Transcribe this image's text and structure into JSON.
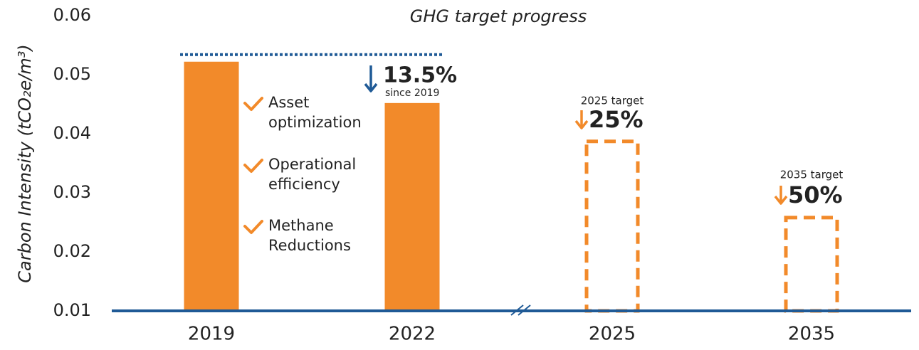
{
  "chart_data": {
    "type": "bar",
    "title": "GHG target progress",
    "y_label": "Carbon Intensity (tCO₂e/m³)",
    "categories": [
      "2019",
      "2022",
      "2025",
      "2035"
    ],
    "values": [
      0.0522,
      0.0452,
      0.039,
      0.0261
    ],
    "styles": [
      "solid",
      "solid",
      "dashed",
      "dashed"
    ],
    "color": "#f28a2a",
    "axis_color": "#1f5a96",
    "ylim": [
      0.01,
      0.06
    ],
    "yticks": [
      0.01,
      0.02,
      0.03,
      0.04,
      0.05,
      0.06
    ],
    "grid": false,
    "axis_break": true,
    "annotations": {
      "change_2022": {
        "value": "13.5%",
        "note": "since 2019"
      },
      "target_2025": {
        "label": "2025 target",
        "value": "25%"
      },
      "target_2035": {
        "label": "2035 target",
        "value": "50%"
      }
    },
    "checklist": [
      [
        "Asset",
        "optimization"
      ],
      [
        "Operational",
        "efficiency"
      ],
      [
        "Methane",
        "Reductions"
      ]
    ]
  }
}
